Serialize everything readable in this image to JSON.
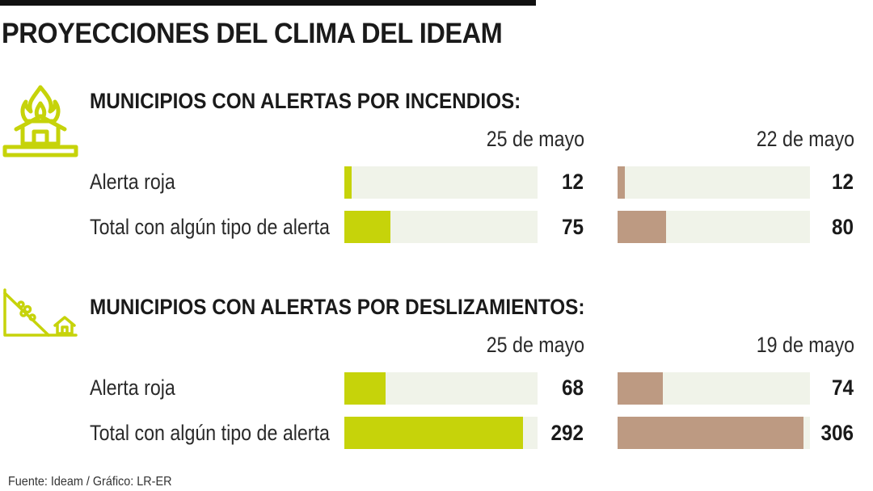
{
  "title": "PROYECCIONES DEL CLIMA DEL IDEAM",
  "source": "Fuente: Ideam / Gráfico: LR-ER",
  "colors": {
    "current": "#c6d30a",
    "previous": "#bd9a82",
    "track": "#f0f3e9"
  },
  "chart_data": [
    {
      "type": "bar",
      "title": "MUNICIPIOS CON ALERTAS POR INCENDIOS:",
      "icon": "fire-house-icon",
      "categories": [
        "Alerta roja",
        "Total con algún tipo de alerta"
      ],
      "series": [
        {
          "name": "25 de mayo",
          "values": [
            12,
            75
          ]
        },
        {
          "name": "22 de mayo",
          "values": [
            12,
            80
          ]
        }
      ],
      "xlim": [
        0,
        316
      ]
    },
    {
      "type": "bar",
      "title": "MUNICIPIOS CON ALERTAS POR DESLIZAMIENTOS:",
      "icon": "landslide-icon",
      "categories": [
        "Alerta roja",
        "Total con algún tipo de alerta"
      ],
      "series": [
        {
          "name": "25 de mayo",
          "values": [
            68,
            292
          ]
        },
        {
          "name": "19 de mayo",
          "values": [
            74,
            306
          ]
        }
      ],
      "xlim": [
        0,
        316
      ]
    }
  ]
}
